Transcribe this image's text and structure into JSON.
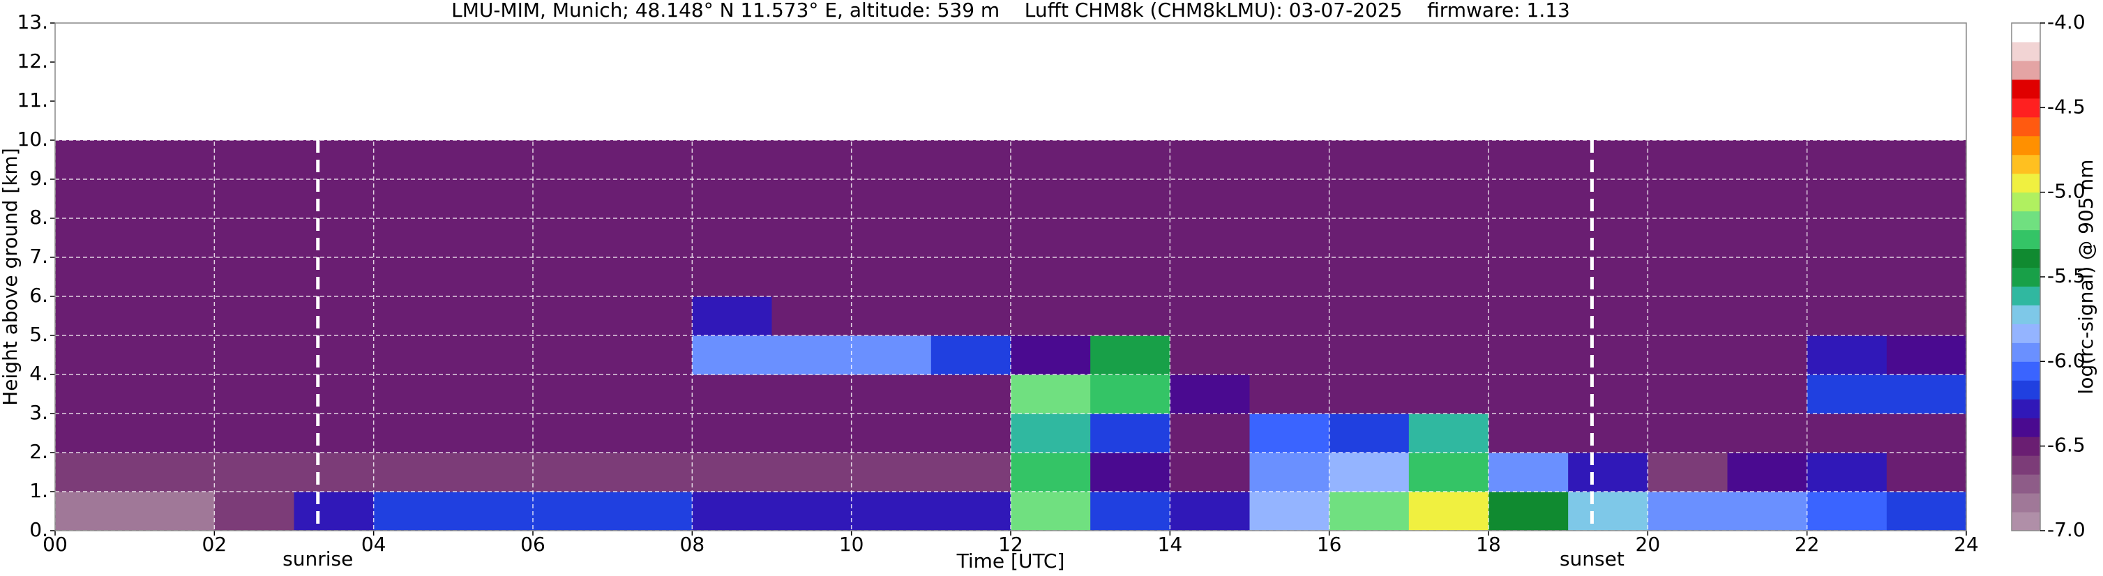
{
  "chart_data": {
    "type": "heatmap",
    "title": "LMU-MIM, Munich; 48.148° N 11.573° E, altitude: 539 m    Lufft CHM8k (CHM8kLMU): 03-07-2025    firmware: 1.13",
    "xlabel": "Time [UTC]",
    "ylabel": "Height above ground [km]",
    "x_bins": [
      0,
      1,
      2,
      3,
      4,
      5,
      6,
      7,
      8,
      9,
      10,
      11,
      12,
      13,
      14,
      15,
      16,
      17,
      18,
      19,
      20,
      21,
      22,
      23,
      24
    ],
    "y_bins": [
      0,
      1,
      2,
      3,
      4,
      5,
      6,
      7,
      8,
      9,
      10
    ],
    "z": [
      [
        -6.8,
        -6.8,
        -6.6,
        -6.3,
        -6.2,
        -6.2,
        -6.2,
        -6.2,
        -6.3,
        -6.3,
        -6.3,
        -6.3,
        -5.2,
        -6.2,
        -6.3,
        -5.8,
        -5.2,
        -5.0,
        -5.4,
        -5.7,
        -6.0,
        -6.0,
        -6.1,
        -6.2
      ],
      [
        -6.6,
        -6.6,
        -6.6,
        -6.6,
        -6.6,
        -6.6,
        -6.6,
        -6.6,
        -6.6,
        -6.6,
        -6.6,
        -6.6,
        -5.3,
        -6.4,
        -6.5,
        -6.0,
        -5.8,
        -5.3,
        -5.9,
        -6.3,
        -6.6,
        -6.4,
        -6.3,
        -6.5
      ],
      [
        -6.5,
        -6.5,
        -6.5,
        -6.5,
        -6.5,
        -6.5,
        -6.5,
        -6.5,
        -6.5,
        -6.5,
        -6.5,
        -6.5,
        -5.6,
        -6.2,
        -6.5,
        -6.1,
        -6.2,
        -5.6,
        -6.5,
        -6.5,
        -6.5,
        -6.5,
        -6.5,
        -6.5
      ],
      [
        -6.5,
        -6.5,
        -6.5,
        -6.5,
        -6.5,
        -6.5,
        -6.5,
        -6.5,
        -6.5,
        -6.5,
        -6.5,
        -6.5,
        -5.2,
        -5.3,
        -6.4,
        -6.5,
        -6.5,
        -6.5,
        -6.5,
        -6.5,
        -6.5,
        -6.5,
        -6.2,
        -6.2
      ],
      [
        -6.5,
        -6.5,
        -6.5,
        -6.5,
        -6.5,
        -6.5,
        -6.5,
        -6.5,
        -5.9,
        -5.9,
        -5.9,
        -6.2,
        -6.4,
        -5.5,
        -6.5,
        -6.5,
        -6.5,
        -6.5,
        -6.5,
        -6.5,
        -6.5,
        -6.5,
        -6.3,
        -6.4
      ],
      [
        -6.5,
        -6.5,
        -6.5,
        -6.5,
        -6.5,
        -6.5,
        -6.5,
        -6.5,
        -6.3,
        -6.5,
        -6.5,
        -6.5,
        -6.5,
        -6.5,
        -6.5,
        -6.5,
        -6.5,
        -6.5,
        -6.5,
        -6.5,
        -6.5,
        -6.5,
        -6.5,
        -6.5
      ],
      [
        -6.5,
        -6.5,
        -6.5,
        -6.5,
        -6.5,
        -6.5,
        -6.5,
        -6.5,
        -6.5,
        -6.5,
        -6.5,
        -6.5,
        -6.5,
        -6.5,
        -6.5,
        -6.5,
        -6.5,
        -6.5,
        -6.5,
        -6.5,
        -6.5,
        -6.5,
        -6.5,
        -6.5
      ],
      [
        -6.5,
        -6.5,
        -6.5,
        -6.5,
        -6.5,
        -6.5,
        -6.5,
        -6.5,
        -6.5,
        -6.5,
        -6.5,
        -6.5,
        -6.5,
        -6.5,
        -6.5,
        -6.5,
        -6.5,
        -6.5,
        -6.5,
        -6.5,
        -6.5,
        -6.5,
        -6.5,
        -6.5
      ],
      [
        -6.5,
        -6.5,
        -6.5,
        -6.5,
        -6.5,
        -6.5,
        -6.5,
        -6.5,
        -6.5,
        -6.5,
        -6.5,
        -6.5,
        -6.5,
        -6.5,
        -6.5,
        -6.5,
        -6.5,
        -6.5,
        -6.5,
        -6.5,
        -6.5,
        -6.5,
        -6.5,
        -6.5
      ],
      [
        -6.5,
        -6.5,
        -6.5,
        -6.5,
        -6.5,
        -6.5,
        -6.5,
        -6.5,
        -6.5,
        -6.5,
        -6.5,
        -6.5,
        -6.5,
        -6.5,
        -6.5,
        -6.5,
        -6.5,
        -6.5,
        -6.5,
        -6.5,
        -6.5,
        -6.5,
        -6.5,
        -6.5
      ]
    ],
    "xlim": [
      0,
      24
    ],
    "ylim": [
      0,
      13
    ],
    "xticks": [
      {
        "value": 0,
        "label": "00"
      },
      {
        "value": 2,
        "label": "02"
      },
      {
        "value": 4,
        "label": "04"
      },
      {
        "value": 6,
        "label": "06"
      },
      {
        "value": 8,
        "label": "08"
      },
      10,
      12,
      14,
      16,
      18,
      20,
      22,
      24
    ],
    "yticks": [
      {
        "value": 0,
        "label": "0."
      },
      {
        "value": 1,
        "label": "1."
      },
      {
        "value": 2,
        "label": "2."
      },
      {
        "value": 3,
        "label": "3."
      },
      {
        "value": 4,
        "label": "4."
      },
      {
        "value": 5,
        "label": "5."
      },
      {
        "value": 6,
        "label": "6."
      },
      {
        "value": 7,
        "label": "7."
      },
      {
        "value": 8,
        "label": "8."
      },
      {
        "value": 9,
        "label": "9."
      },
      {
        "value": 10,
        "label": "10."
      },
      {
        "value": 11,
        "label": "11."
      },
      {
        "value": 12,
        "label": "12."
      },
      {
        "value": 13,
        "label": "13."
      }
    ],
    "grid": true,
    "colorbar": {
      "label": "log(rc-signal) @ 905 nm",
      "lim": [
        -7,
        -4
      ],
      "ticks": [
        {
          "value": -7,
          "label": "-7.0"
        },
        -6.5,
        {
          "value": -6,
          "label": "-6.0"
        },
        -5.5,
        {
          "value": -5,
          "label": "-5.0"
        },
        -4.5,
        {
          "value": -4,
          "label": "-4.0"
        }
      ],
      "colors": [
        "#b08fa8",
        "#a07898",
        "#8e5c88",
        "#7c3c78",
        "#6a1e72",
        "#4a0a90",
        "#3018b8",
        "#2040e0",
        "#3a64ff",
        "#6a90ff",
        "#94b4ff",
        "#7ec8e8",
        "#30b8a0",
        "#18a048",
        "#108a30",
        "#34c466",
        "#70e080",
        "#b0f060",
        "#f0f040",
        "#ffc020",
        "#ff9000",
        "#ff5a10",
        "#ff2020",
        "#e00000",
        "#e4a4a4",
        "#f2d4d4",
        "#ffffff"
      ]
    },
    "annotations": [
      {
        "x": 3.3,
        "label": "sunrise"
      },
      {
        "x": 19.3,
        "label": "sunset"
      }
    ],
    "annotation_color": "#ffffff"
  }
}
